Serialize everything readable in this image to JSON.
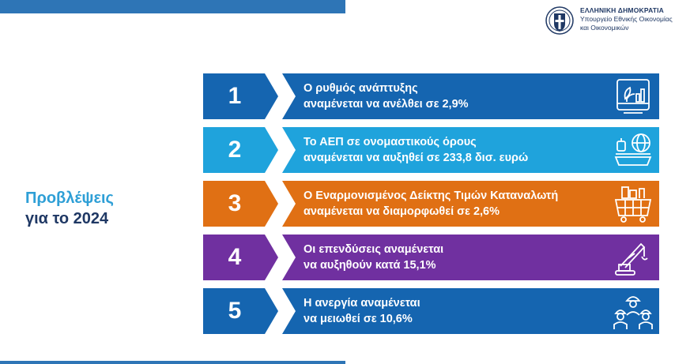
{
  "header": {
    "logo_title": "ΕΛΛΗΝΙΚΗ ΔΗΜΟΚΡΑΤΙΑ",
    "logo_line2": "Υπουργείο Εθνικής Οικονομίας",
    "logo_line3": "και Οικονομικών"
  },
  "side_title": {
    "line1": "Προβλέψεις",
    "line2": "για το 2024"
  },
  "colors": {
    "row1": "#1565b0",
    "row2": "#1fa3dc",
    "row3": "#e07014",
    "row4": "#7030a0",
    "row5": "#1565b0",
    "brand_blue": "#2e75b6"
  },
  "rows": [
    {
      "number": "1",
      "line1": "Ο ρυθμός ανάπτυξης",
      "line2": "αναμένεται να ανέλθει σε 2,9%",
      "icon": "growth-chart-icon"
    },
    {
      "number": "2",
      "line1": "Το ΑΕΠ σε ονομαστικούς όρους",
      "line2": "αναμένεται να αυξηθεί σε 233,8 δισ. ευρώ",
      "icon": "global-economy-icon"
    },
    {
      "number": "3",
      "line1": "Ο Εναρμονισμένος Δείκτης Τιμών Καταναλωτή",
      "line2": "αναμένεται να διαμορφωθεί σε 2,6%",
      "icon": "shopping-basket-icon"
    },
    {
      "number": "4",
      "line1": "Οι επενδύσεις αναμένεται",
      "line2": "να αυξηθούν κατά 15,1%",
      "icon": "crane-icon"
    },
    {
      "number": "5",
      "line1": "Η ανεργία αναμένεται",
      "line2": "να μειωθεί σε 10,6%",
      "icon": "workers-icon"
    }
  ]
}
